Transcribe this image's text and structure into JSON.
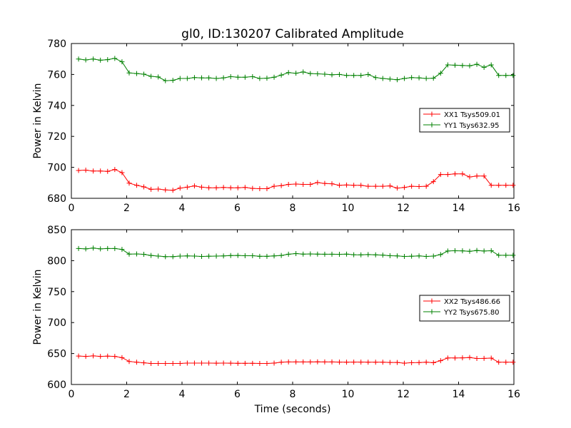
{
  "figure": {
    "title": "gl0, ID:130207 Calibrated Amplitude",
    "xlabel": "Time (seconds)"
  },
  "chart_data": [
    {
      "type": "line",
      "title": "gl0, ID:130207 Calibrated Amplitude",
      "xlabel": "",
      "ylabel": "Power in Kelvin",
      "xlim": [
        0,
        16
      ],
      "ylim": [
        680,
        780
      ],
      "xticks": [
        0,
        2,
        4,
        6,
        8,
        10,
        12,
        14,
        16
      ],
      "yticks": [
        680,
        700,
        720,
        740,
        760,
        780
      ],
      "grid": false,
      "legend": "center-right",
      "x": [
        0.26,
        0.52,
        0.79,
        1.05,
        1.31,
        1.57,
        1.83,
        2.09,
        2.36,
        2.62,
        2.88,
        3.14,
        3.4,
        3.67,
        3.93,
        4.19,
        4.45,
        4.71,
        4.97,
        5.24,
        5.5,
        5.76,
        6.02,
        6.28,
        6.55,
        6.81,
        7.07,
        7.33,
        7.59,
        7.85,
        8.12,
        8.38,
        8.64,
        8.9,
        9.16,
        9.42,
        9.69,
        9.95,
        10.21,
        10.47,
        10.73,
        11.0,
        11.26,
        11.52,
        11.78,
        12.04,
        12.3,
        12.57,
        12.83,
        13.09,
        13.35,
        13.61,
        13.87,
        14.14,
        14.4,
        14.66,
        14.92,
        15.18,
        15.45,
        15.71,
        15.97
      ],
      "series": [
        {
          "name": "XX1 Tsys509.01",
          "color": "#ff0000",
          "marker": "+",
          "values": [
            698,
            698.2,
            697.6,
            697.6,
            697.4,
            698.6,
            696.6,
            689.8,
            688.4,
            687.4,
            685.8,
            686,
            685.4,
            685.2,
            686.6,
            687.2,
            688,
            687.2,
            686.8,
            686.8,
            687,
            686.8,
            686.8,
            687,
            686.4,
            686.2,
            686.2,
            687.8,
            688.2,
            689,
            689.2,
            689,
            689,
            690.2,
            689.6,
            689.4,
            688.4,
            688.6,
            688.4,
            688.4,
            687.8,
            687.8,
            687.8,
            688,
            686.6,
            687,
            687.8,
            687.6,
            687.8,
            690.8,
            695.4,
            695.4,
            695.8,
            695.8,
            693.8,
            694.4,
            694.4,
            688.4,
            688.4,
            688.4,
            688.4
          ]
        },
        {
          "name": "YY1 Tsys632.95",
          "color": "#008000",
          "marker": "+",
          "values": [
            770,
            769.4,
            770,
            769.2,
            769.6,
            770.4,
            768.2,
            761,
            760.6,
            760.2,
            758.8,
            758.4,
            756,
            756.2,
            757.4,
            757.4,
            758,
            757.8,
            757.8,
            757.4,
            757.8,
            758.6,
            758.2,
            758.2,
            758.6,
            757.4,
            757.6,
            758.2,
            759.6,
            761.2,
            760.8,
            761.6,
            760.6,
            760.4,
            760.2,
            759.8,
            760,
            759.4,
            759.4,
            759.4,
            760,
            758,
            757.4,
            757,
            756.6,
            757.4,
            758,
            757.8,
            757.4,
            757.6,
            760.8,
            766.2,
            766,
            765.8,
            765.6,
            766.6,
            764.6,
            766.2,
            759.4,
            759.4,
            759.4
          ]
        }
      ]
    },
    {
      "type": "line",
      "title": "",
      "xlabel": "Time (seconds)",
      "ylabel": "Power in Kelvin",
      "xlim": [
        0,
        16
      ],
      "ylim": [
        600,
        850
      ],
      "xticks": [
        0,
        2,
        4,
        6,
        8,
        10,
        12,
        14,
        16
      ],
      "yticks": [
        600,
        650,
        700,
        750,
        800,
        850
      ],
      "grid": false,
      "legend": "center-right",
      "x": [
        0.26,
        0.52,
        0.79,
        1.05,
        1.31,
        1.57,
        1.83,
        2.09,
        2.36,
        2.62,
        2.88,
        3.14,
        3.4,
        3.67,
        3.93,
        4.19,
        4.45,
        4.71,
        4.97,
        5.24,
        5.5,
        5.76,
        6.02,
        6.28,
        6.55,
        6.81,
        7.07,
        7.33,
        7.59,
        7.85,
        8.12,
        8.38,
        8.64,
        8.9,
        9.16,
        9.42,
        9.69,
        9.95,
        10.21,
        10.47,
        10.73,
        11.0,
        11.26,
        11.52,
        11.78,
        12.04,
        12.3,
        12.57,
        12.83,
        13.09,
        13.35,
        13.61,
        13.87,
        14.14,
        14.4,
        14.66,
        14.92,
        15.18,
        15.45,
        15.71,
        15.97
      ],
      "series": [
        {
          "name": "XX2 Tsys486.66",
          "color": "#ff0000",
          "marker": "+",
          "values": [
            646,
            645.4,
            646.2,
            645.4,
            645.8,
            645.4,
            643.4,
            637.2,
            636,
            635,
            634,
            634,
            634,
            634,
            634,
            634.6,
            634.6,
            634.6,
            634.6,
            634.4,
            634.6,
            634.4,
            634.2,
            634.2,
            634.2,
            634,
            634,
            634.6,
            636,
            636.4,
            636.4,
            636.4,
            636.4,
            636.6,
            636.4,
            636.4,
            636.2,
            636,
            636.2,
            636.2,
            636,
            636,
            636,
            635.6,
            635.6,
            634.4,
            635.2,
            635.4,
            636,
            635.2,
            638.4,
            642.8,
            642.8,
            643,
            643.6,
            642,
            642.2,
            642.6,
            636,
            636,
            636
          ]
        },
        {
          "name": "YY2 Tsys675.80",
          "color": "#008000",
          "marker": "+",
          "values": [
            819.6,
            819,
            820.4,
            819,
            819.6,
            819.6,
            818.2,
            810.6,
            810.8,
            810.2,
            808.4,
            807.4,
            806.4,
            806.4,
            807.4,
            807.6,
            807.4,
            806.8,
            807.2,
            807.4,
            807.6,
            808.2,
            808.4,
            808,
            808,
            807,
            807,
            807.6,
            808.4,
            810.4,
            811.4,
            810.6,
            810.8,
            810.6,
            810.4,
            810.4,
            810.2,
            810.6,
            809.6,
            809.4,
            809.8,
            809.4,
            809,
            808,
            807.6,
            806.8,
            807.2,
            807.6,
            806.8,
            807.4,
            809.8,
            815.6,
            816,
            815.8,
            815.2,
            816.4,
            815.6,
            816,
            808.6,
            808.6,
            808.6
          ]
        }
      ]
    }
  ]
}
